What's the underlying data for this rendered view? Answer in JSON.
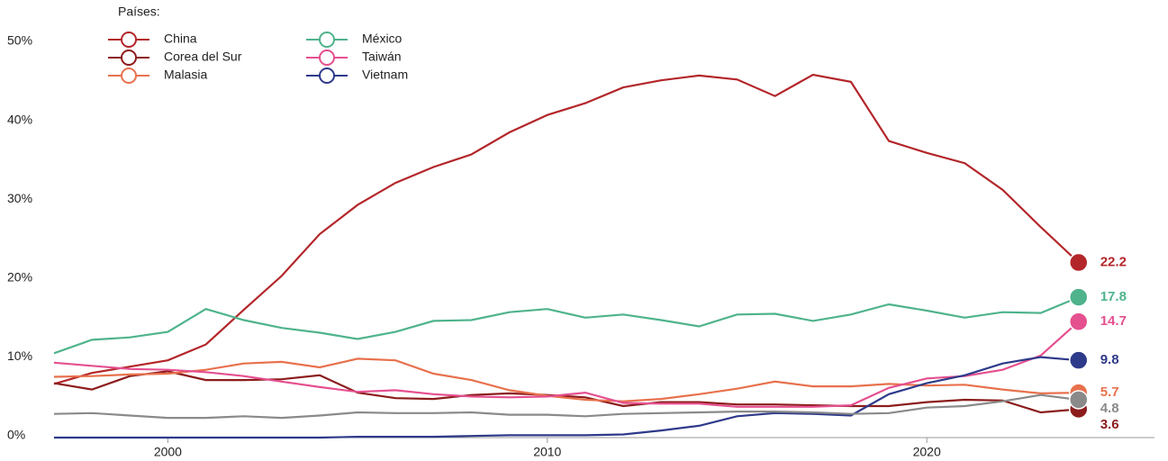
{
  "chart_data": {
    "type": "line",
    "legend_title": "Países:",
    "x": [
      1997,
      1998,
      1999,
      2000,
      2001,
      2002,
      2003,
      2004,
      2005,
      2006,
      2007,
      2008,
      2009,
      2010,
      2011,
      2012,
      2013,
      2014,
      2015,
      2016,
      2017,
      2018,
      2019,
      2020,
      2021,
      2022,
      2023,
      2024
    ],
    "xlim": [
      1997,
      2026
    ],
    "xticks": [
      2000,
      2010,
      2020
    ],
    "ylim": [
      0,
      50
    ],
    "yticks": [
      {
        "value": 0,
        "label": "0%"
      },
      {
        "value": 10,
        "label": "10%"
      },
      {
        "value": 20,
        "label": "20%"
      },
      {
        "value": 30,
        "label": "30%"
      },
      {
        "value": 40,
        "label": "40%"
      },
      {
        "value": 50,
        "label": "50%"
      }
    ],
    "series": [
      {
        "name": "China",
        "color": "#b3262a",
        "values": [
          6.8,
          8.2,
          9.0,
          9.8,
          11.8,
          16.2,
          20.5,
          25.8,
          29.5,
          32.3,
          34.3,
          35.9,
          38.7,
          40.9,
          42.4,
          44.4,
          45.3,
          45.9,
          45.4,
          43.3,
          46.0,
          45.1,
          37.6,
          36.1,
          34.8,
          31.4,
          26.7,
          22.2
        ]
      },
      {
        "name": "Corea del Sur",
        "color": "#8c1c1c",
        "values": [
          6.9,
          6.1,
          7.8,
          8.4,
          7.3,
          7.3,
          7.4,
          7.9,
          5.7,
          5.0,
          4.9,
          5.4,
          5.6,
          5.4,
          5.1,
          4.0,
          4.5,
          4.5,
          4.2,
          4.2,
          4.1,
          4.0,
          4.0,
          4.5,
          4.8,
          4.7,
          3.2,
          3.6
        ]
      },
      {
        "name": "Malasia",
        "color": "#e8714d",
        "values": [
          7.7,
          7.8,
          8.0,
          8.1,
          8.6,
          9.4,
          9.6,
          8.9,
          10.0,
          9.8,
          8.1,
          7.3,
          6.0,
          5.3,
          4.8,
          4.6,
          4.9,
          5.5,
          6.2,
          7.1,
          6.5,
          6.5,
          6.8,
          6.6,
          6.7,
          6.1,
          5.6,
          5.7
        ]
      },
      {
        "name": "México",
        "color": "#4fb38c",
        "values": [
          10.7,
          12.4,
          12.7,
          13.4,
          16.3,
          14.9,
          13.9,
          13.3,
          12.5,
          13.4,
          14.8,
          14.9,
          15.9,
          16.3,
          15.2,
          15.6,
          14.9,
          14.1,
          15.6,
          15.7,
          14.8,
          15.6,
          16.9,
          16.1,
          15.2,
          15.9,
          15.8,
          17.8
        ]
      },
      {
        "name": "Taiwán",
        "color": "#e5508f",
        "values": [
          9.5,
          9.1,
          8.7,
          8.6,
          8.3,
          7.8,
          7.1,
          6.4,
          5.8,
          6.0,
          5.5,
          5.2,
          5.1,
          5.2,
          5.7,
          4.4,
          4.3,
          4.3,
          3.9,
          3.9,
          3.9,
          4.1,
          6.3,
          7.5,
          7.8,
          8.6,
          10.4,
          14.7
        ]
      },
      {
        "name": "Vietnam",
        "color": "#2e3a8a",
        "values": [
          0,
          0,
          0,
          0,
          0,
          0,
          0,
          0,
          0.1,
          0.1,
          0.1,
          0.2,
          0.3,
          0.3,
          0.3,
          0.4,
          0.9,
          1.5,
          2.7,
          3.1,
          3.0,
          2.8,
          5.5,
          6.9,
          7.9,
          9.4,
          10.2,
          9.8
        ]
      },
      {
        "color": "#8a8a8a",
        "values": [
          3.0,
          3.1,
          2.8,
          2.5,
          2.5,
          2.7,
          2.5,
          2.8,
          3.2,
          3.1,
          3.1,
          3.2,
          2.9,
          2.9,
          2.7,
          3.0,
          3.1,
          3.2,
          3.3,
          3.3,
          3.2,
          3.0,
          3.1,
          3.8,
          4.0,
          4.6,
          5.4,
          4.8
        ]
      }
    ]
  }
}
